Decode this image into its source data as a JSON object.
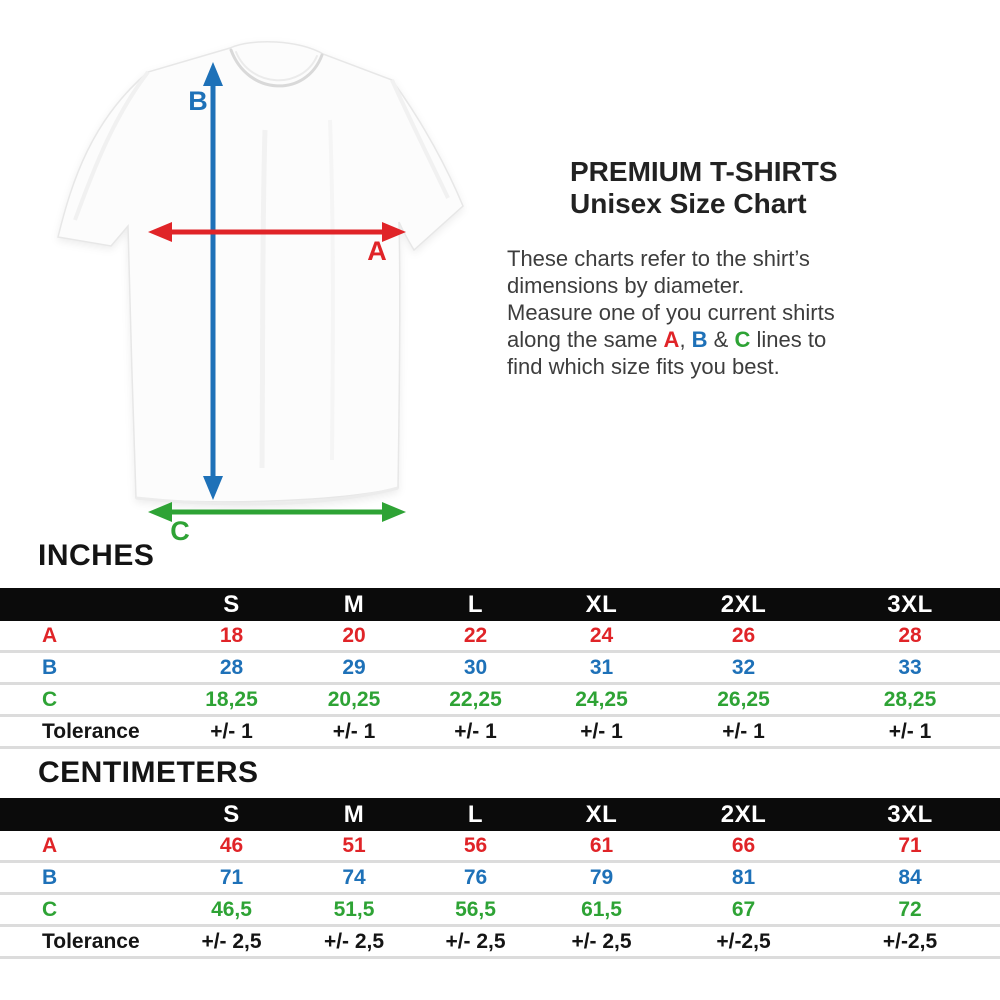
{
  "colors": {
    "red": "#e02428",
    "blue": "#1e71b8",
    "green": "#2ea335",
    "header_bg": "#0b0b0b"
  },
  "shirt": {
    "labels": {
      "a": "A",
      "b": "B",
      "c": "C"
    }
  },
  "header": {
    "title_line1": "PREMIUM T-SHIRTS",
    "title_line2": "Unisex Size Chart",
    "description_lines": [
      [
        {
          "t": "These charts refer to the shirt’s"
        }
      ],
      [
        {
          "t": "dimensions by diameter."
        }
      ],
      [
        {
          "t": "Measure one of you current shirts"
        }
      ],
      [
        {
          "t": "along the same "
        },
        {
          "t": "A",
          "c": "#e02428"
        },
        {
          "t": ", "
        },
        {
          "t": "B",
          "c": "#1e71b8"
        },
        {
          "t": " & "
        },
        {
          "t": "C",
          "c": "#2ea335"
        },
        {
          "t": " lines to"
        }
      ],
      [
        {
          "t": "find which size fits you best."
        }
      ]
    ]
  },
  "tables": [
    {
      "heading": "INCHES",
      "columns": [
        "",
        "S",
        "M",
        "L",
        "XL",
        "2XL",
        "3XL"
      ],
      "rows": [
        {
          "label": "A",
          "color": "#e02428",
          "values": [
            "18",
            "20",
            "22",
            "24",
            "26",
            "28"
          ]
        },
        {
          "label": "B",
          "color": "#1e71b8",
          "values": [
            "28",
            "29",
            "30",
            "31",
            "32",
            "33"
          ]
        },
        {
          "label": "C",
          "color": "#2ea335",
          "values": [
            "18,25",
            "20,25",
            "22,25",
            "24,25",
            "26,25",
            "28,25"
          ]
        },
        {
          "label": "Tolerance",
          "color": "#151515",
          "values": [
            "+/- 1",
            "+/- 1",
            "+/- 1",
            "+/- 1",
            "+/- 1",
            "+/- 1"
          ]
        }
      ]
    },
    {
      "heading": "CENTIMETERS",
      "columns": [
        "",
        "S",
        "M",
        "L",
        "XL",
        "2XL",
        "3XL"
      ],
      "rows": [
        {
          "label": "A",
          "color": "#e02428",
          "values": [
            "46",
            "51",
            "56",
            "61",
            "66",
            "71"
          ]
        },
        {
          "label": "B",
          "color": "#1e71b8",
          "values": [
            "71",
            "74",
            "76",
            "79",
            "81",
            "84"
          ]
        },
        {
          "label": "C",
          "color": "#2ea335",
          "values": [
            "46,5",
            "51,5",
            "56,5",
            "61,5",
            "67",
            "72"
          ]
        },
        {
          "label": "Tolerance",
          "color": "#151515",
          "values": [
            "+/- 2,5",
            "+/- 2,5",
            "+/- 2,5",
            "+/- 2,5",
            "+/-2,5",
            "+/-2,5"
          ]
        }
      ]
    }
  ]
}
